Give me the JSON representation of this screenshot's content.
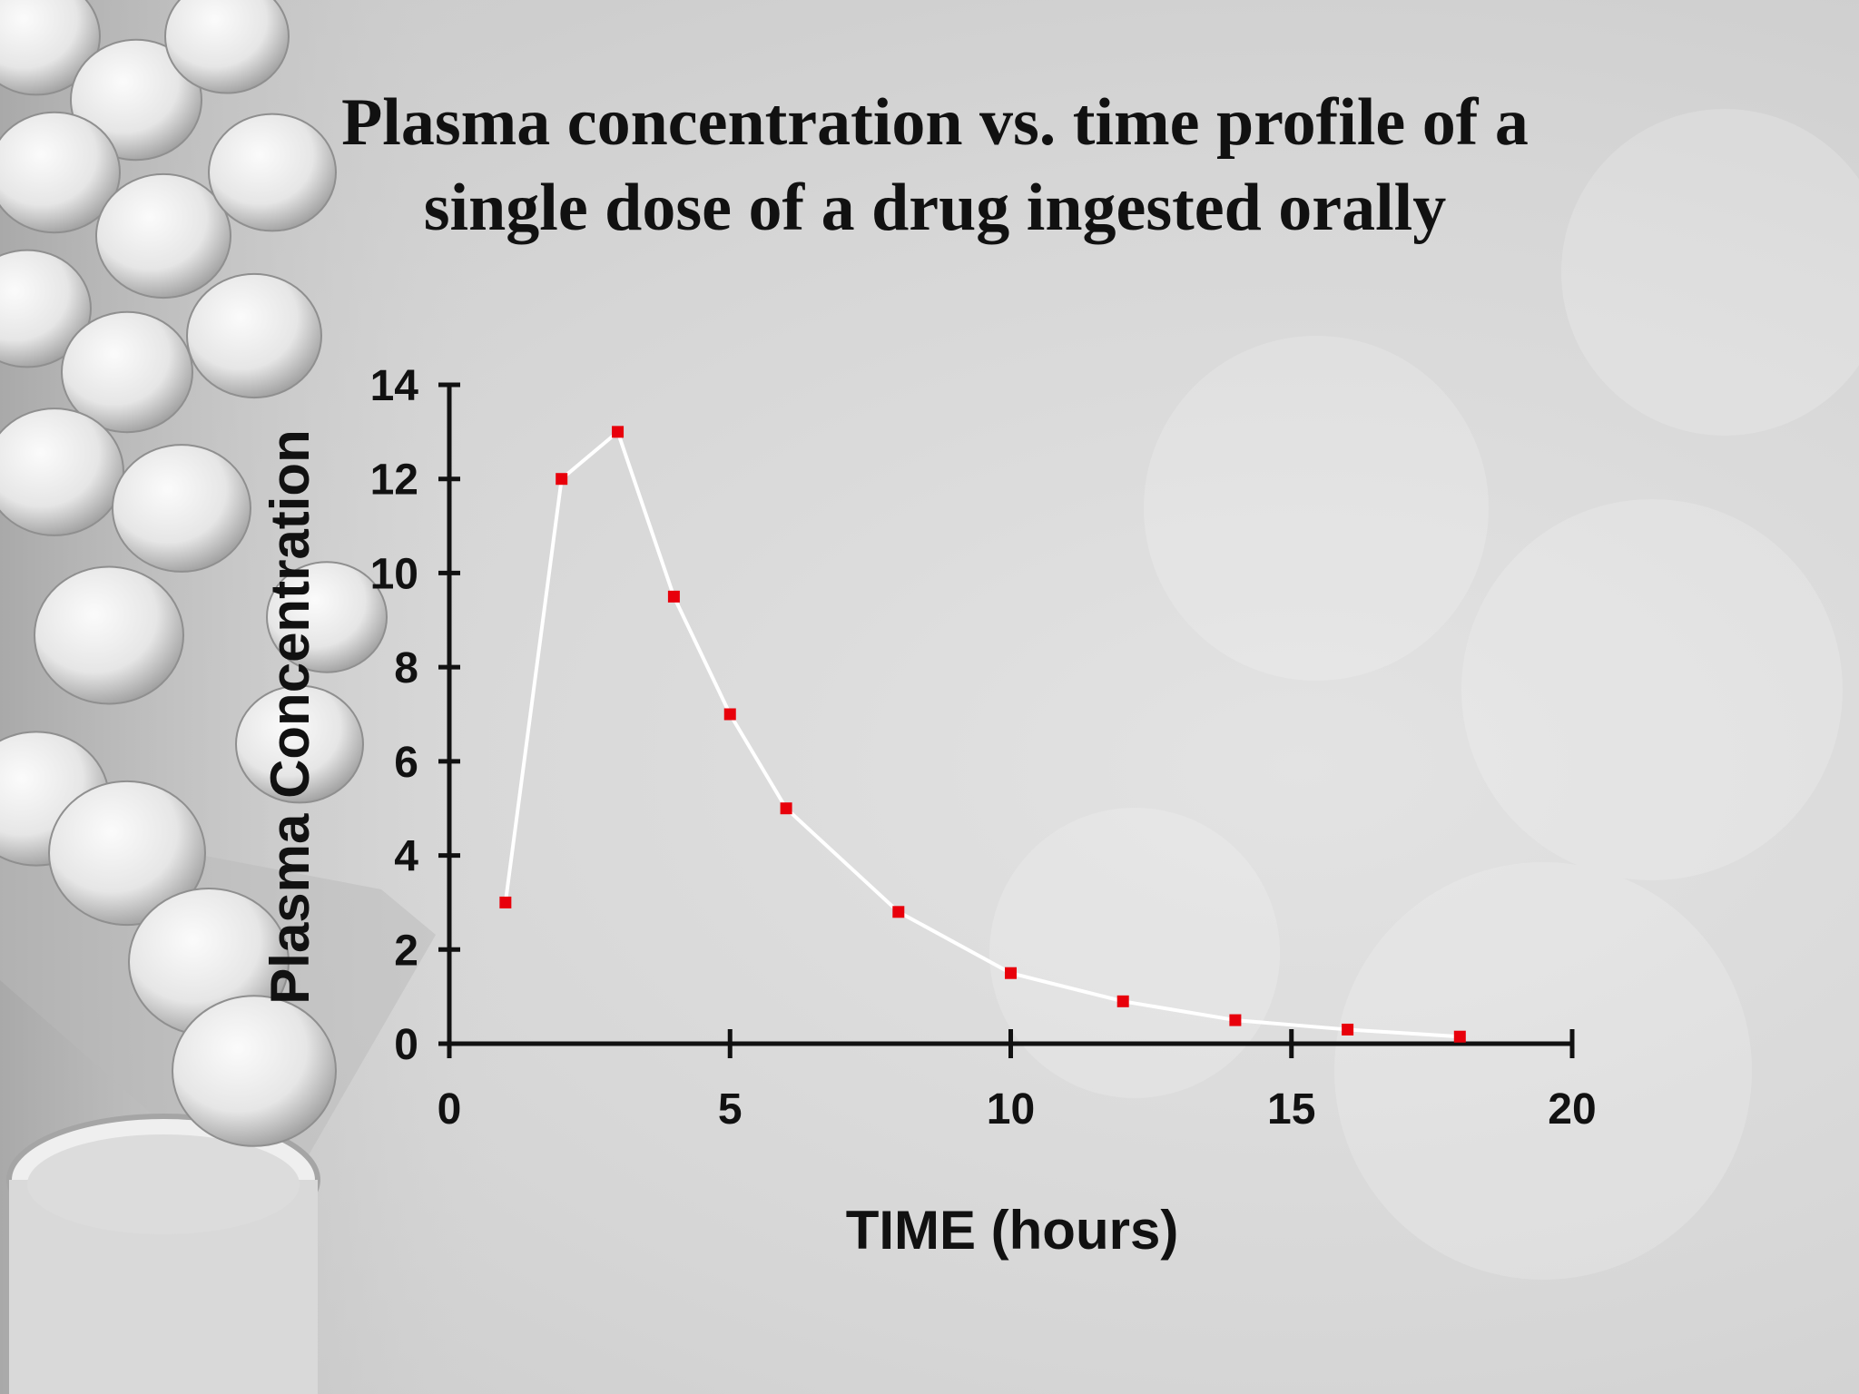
{
  "slide": {
    "title_line1": "Plasma concentration vs. time profile of a",
    "title_line2": "single dose of a drug ingested orally"
  },
  "colors": {
    "line": "#ffffff",
    "marker": "#e8000b",
    "axis": "#111111"
  },
  "chart_data": {
    "type": "line",
    "title": "Plasma concentration vs. time profile of a single dose of a drug ingested orally",
    "xlabel": "TIME (hours)",
    "ylabel": "Plasma Concentration",
    "xlim": [
      0,
      20
    ],
    "ylim": [
      0,
      14
    ],
    "xticks": [
      0,
      5,
      10,
      15,
      20
    ],
    "yticks": [
      0,
      2,
      4,
      6,
      8,
      10,
      12,
      14
    ],
    "grid": false,
    "legend": "none",
    "series": [
      {
        "x": [
          1,
          2,
          3,
          4,
          5,
          6,
          8,
          10,
          12,
          14,
          16,
          18
        ],
        "y": [
          3,
          12,
          13,
          9.5,
          7,
          5,
          2.8,
          1.5,
          0.9,
          0.5,
          0.3,
          0.15
        ]
      }
    ]
  }
}
